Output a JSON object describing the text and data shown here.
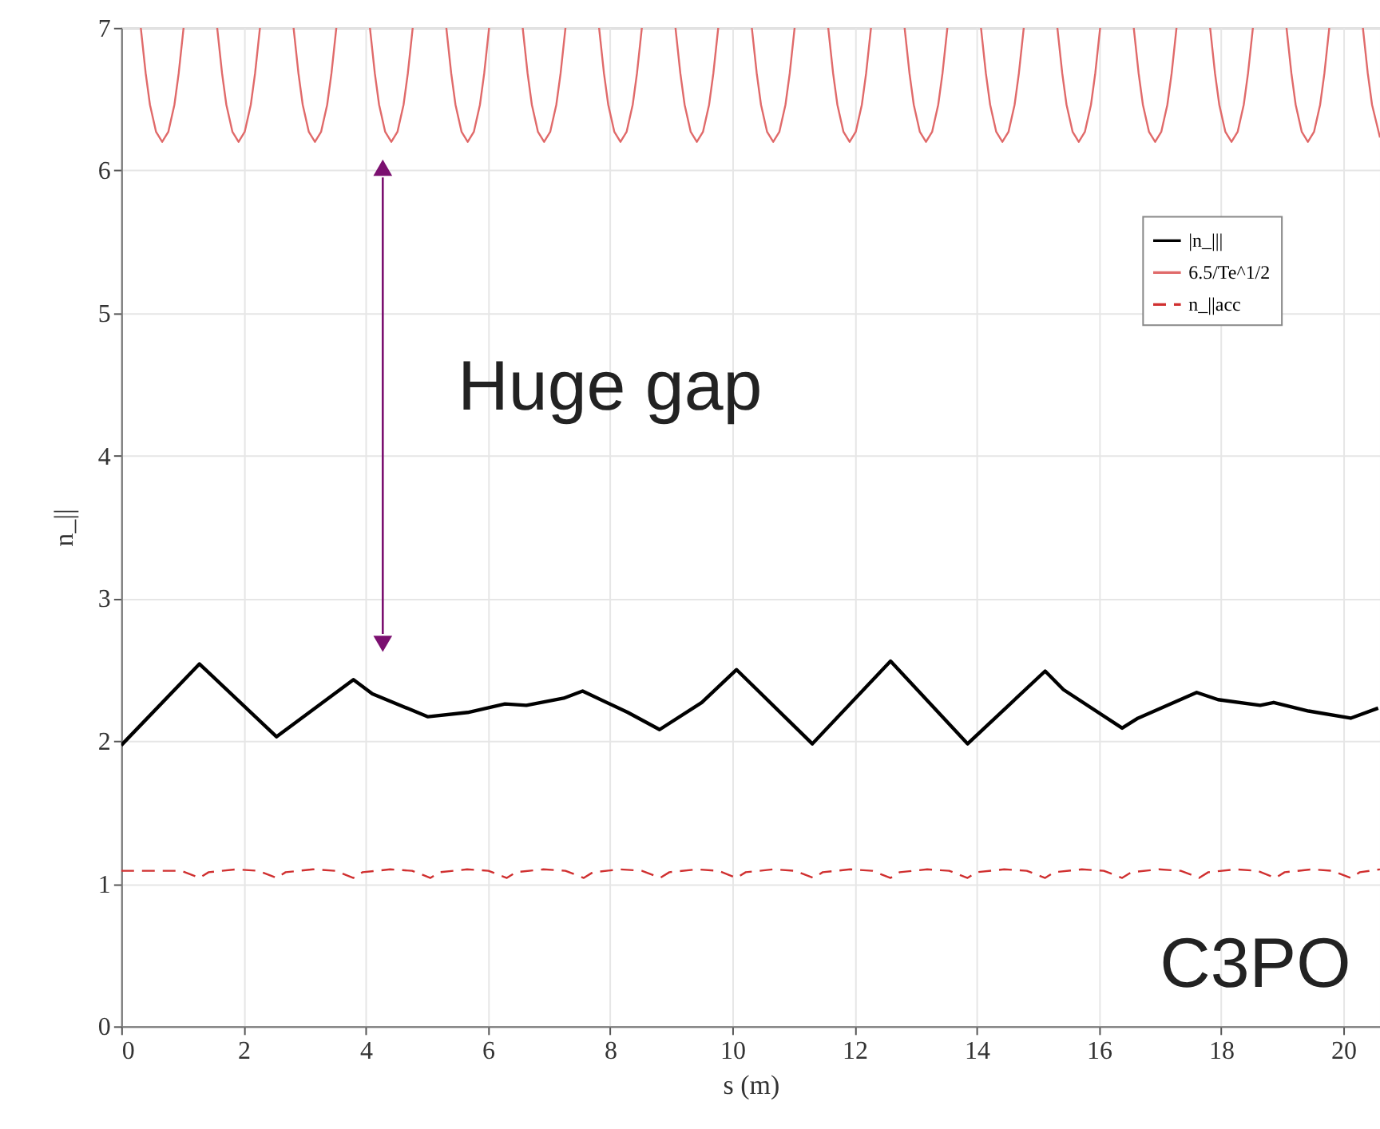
{
  "chart_data": {
    "type": "line",
    "xlabel": "s (m)",
    "ylabel": "n_||",
    "xlim": [
      0,
      20.6
    ],
    "ylim": [
      0,
      7
    ],
    "xticks": [
      0,
      2,
      4,
      6,
      8,
      10,
      12,
      14,
      16,
      18,
      20
    ],
    "yticks": [
      0,
      1,
      2,
      3,
      4,
      5,
      6,
      7
    ],
    "grid": true,
    "legend": "top right",
    "marker": "none",
    "annotations": [
      "Huge gap",
      "C3PO"
    ],
    "series": [
      {
        "name": "|n_|||",
        "color": "#000000",
        "line_style": "solid",
        "x": [
          0,
          1.28,
          2.54,
          3.8,
          4.11,
          5.02,
          5.67,
          6.28,
          6.63,
          7.24,
          7.55,
          8.29,
          8.81,
          9.5,
          10.07,
          11.31,
          12.59,
          13.85,
          15.12,
          15.42,
          16.38,
          16.64,
          17.6,
          17.95,
          18.64,
          18.86,
          19.43,
          20.12,
          20.57
        ],
        "values": [
          1.97,
          2.54,
          2.03,
          2.43,
          2.33,
          2.17,
          2.2,
          2.26,
          2.25,
          2.3,
          2.35,
          2.2,
          2.08,
          2.27,
          2.5,
          1.98,
          2.56,
          1.98,
          2.49,
          2.36,
          2.09,
          2.16,
          2.34,
          2.29,
          2.25,
          2.27,
          2.21,
          2.16,
          2.23
        ]
      },
      {
        "name": "6.5/Te^1/2",
        "color": "#e06a6a",
        "line_style": "solid",
        "x": [
          0.32,
          0.4,
          0.47,
          0.57,
          0.67,
          0.77,
          0.87,
          0.94,
          1.02,
          1.29,
          1.57,
          1.65,
          1.72,
          1.82,
          1.92,
          2.02,
          2.12,
          2.19,
          2.27,
          2.54,
          2.82,
          2.9,
          2.97,
          3.07,
          3.17,
          3.27,
          3.37,
          3.44,
          3.52,
          3.79,
          4.07,
          4.15,
          4.22,
          4.32,
          4.42,
          4.52,
          4.62,
          4.69,
          4.77,
          5.04,
          5.32,
          5.4,
          5.47,
          5.57,
          5.67,
          5.77,
          5.87,
          5.94,
          6.02,
          6.29,
          6.57,
          6.65,
          6.72,
          6.82,
          6.92,
          7.02,
          7.12,
          7.19,
          7.27,
          7.54,
          7.82,
          7.9,
          7.97,
          8.07,
          8.17,
          8.27,
          8.37,
          8.44,
          8.52,
          8.79,
          9.07,
          9.15,
          9.22,
          9.32,
          9.42,
          9.52,
          9.62,
          9.69,
          9.77,
          10.04,
          10.32,
          10.4,
          10.47,
          10.57,
          10.67,
          10.77,
          10.87,
          10.94,
          11.02,
          11.29,
          11.57,
          11.65,
          11.72,
          11.82,
          11.92,
          12.02,
          12.12,
          12.19,
          12.27,
          12.54,
          12.82,
          12.9,
          12.97,
          13.07,
          13.17,
          13.27,
          13.37,
          13.44,
          13.52,
          13.79,
          14.07,
          14.15,
          14.22,
          14.32,
          14.42,
          14.52,
          14.62,
          14.69,
          14.77,
          15.04,
          15.32,
          15.4,
          15.47,
          15.57,
          15.67,
          15.77,
          15.87,
          15.94,
          16.02,
          16.29,
          16.57,
          16.65,
          16.72,
          16.82,
          16.92,
          17.02,
          17.12,
          17.19,
          17.27,
          17.54,
          17.82,
          17.9,
          17.97,
          18.07,
          18.17,
          18.27,
          18.37,
          18.44,
          18.52,
          18.79,
          19.07,
          19.15,
          19.22,
          19.32,
          19.42,
          19.52,
          19.62,
          19.69,
          19.77,
          20.04,
          20.32,
          20.4,
          20.47,
          20.6
        ],
        "values": [
          7,
          6.68,
          6.46,
          6.27,
          6.2,
          6.27,
          6.46,
          6.68,
          7,
          null,
          7,
          6.68,
          6.46,
          6.27,
          6.2,
          6.27,
          6.46,
          6.68,
          7,
          null,
          7,
          6.68,
          6.46,
          6.27,
          6.2,
          6.27,
          6.46,
          6.68,
          7,
          null,
          7,
          6.68,
          6.46,
          6.27,
          6.2,
          6.27,
          6.46,
          6.68,
          7,
          null,
          7,
          6.68,
          6.46,
          6.27,
          6.2,
          6.27,
          6.46,
          6.68,
          7,
          null,
          7,
          6.68,
          6.46,
          6.27,
          6.2,
          6.27,
          6.46,
          6.68,
          7,
          null,
          7,
          6.68,
          6.46,
          6.27,
          6.2,
          6.27,
          6.46,
          6.68,
          7,
          null,
          7,
          6.68,
          6.46,
          6.27,
          6.2,
          6.27,
          6.46,
          6.68,
          7,
          null,
          7,
          6.68,
          6.46,
          6.27,
          6.2,
          6.27,
          6.46,
          6.68,
          7,
          null,
          7,
          6.68,
          6.46,
          6.27,
          6.2,
          6.27,
          6.46,
          6.68,
          7,
          null,
          7,
          6.68,
          6.46,
          6.27,
          6.2,
          6.27,
          6.46,
          6.68,
          7,
          null,
          7,
          6.68,
          6.46,
          6.27,
          6.2,
          6.27,
          6.46,
          6.68,
          7,
          null,
          7,
          6.68,
          6.46,
          6.27,
          6.2,
          6.27,
          6.46,
          6.68,
          7,
          null,
          7,
          6.68,
          6.46,
          6.27,
          6.2,
          6.27,
          6.46,
          6.68,
          7,
          null,
          7,
          6.68,
          6.46,
          6.27,
          6.2,
          6.27,
          6.46,
          6.68,
          7,
          null,
          7,
          6.68,
          6.46,
          6.27,
          6.2,
          6.27,
          6.46,
          6.68,
          7,
          null,
          7,
          6.68,
          6.46,
          6.23
        ]
      },
      {
        "name": "n_||acc",
        "color": "#d03030",
        "line_style": "dashed",
        "x": [
          0,
          0.98,
          1.28,
          1.43,
          1.88,
          2.24,
          2.54,
          2.69,
          3.14,
          3.5,
          3.8,
          3.95,
          4.4,
          4.76,
          5.06,
          5.21,
          5.66,
          6.01,
          6.31,
          6.46,
          6.91,
          7.27,
          7.57,
          7.72,
          8.17,
          8.52,
          8.82,
          8.97,
          9.42,
          9.77,
          10.07,
          10.22,
          10.67,
          11.03,
          11.33,
          11.48,
          11.93,
          12.29,
          12.59,
          12.74,
          13.19,
          13.55,
          13.85,
          14.0,
          14.45,
          14.82,
          15.12,
          15.27,
          15.72,
          16.08,
          16.38,
          16.53,
          16.98,
          17.34,
          17.64,
          17.79,
          18.24,
          18.59,
          18.89,
          19.04,
          19.49,
          19.82,
          20.12,
          20.27,
          20.6
        ],
        "values": [
          1.09,
          1.09,
          1.04,
          1.08,
          1.1,
          1.09,
          1.04,
          1.08,
          1.1,
          1.09,
          1.04,
          1.08,
          1.1,
          1.09,
          1.04,
          1.08,
          1.1,
          1.09,
          1.04,
          1.08,
          1.1,
          1.09,
          1.04,
          1.08,
          1.1,
          1.09,
          1.04,
          1.08,
          1.1,
          1.09,
          1.04,
          1.08,
          1.1,
          1.09,
          1.04,
          1.08,
          1.1,
          1.09,
          1.04,
          1.08,
          1.1,
          1.09,
          1.04,
          1.08,
          1.1,
          1.09,
          1.04,
          1.08,
          1.1,
          1.09,
          1.04,
          1.08,
          1.1,
          1.09,
          1.04,
          1.08,
          1.1,
          1.09,
          1.04,
          1.08,
          1.1,
          1.09,
          1.04,
          1.08,
          1.1
        ]
      }
    ]
  }
}
